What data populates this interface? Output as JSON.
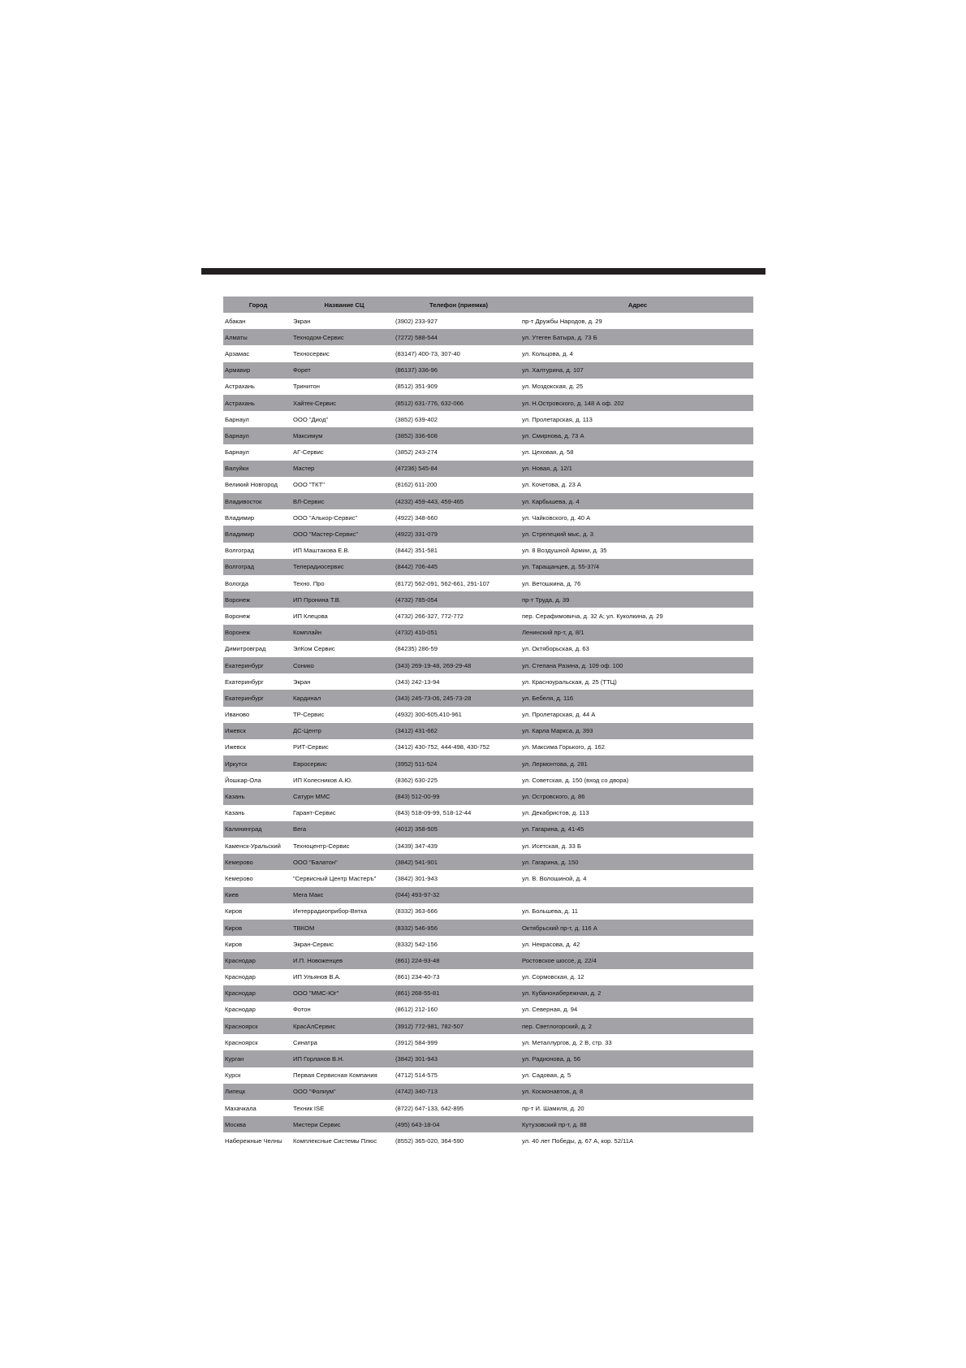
{
  "table": {
    "headers": [
      "Город",
      "Название СЦ",
      "Телефон (приемка)",
      "Адрес"
    ],
    "rows": [
      [
        "Абакан",
        "Экран",
        "(3902) 233-927",
        "пр-т Дружбы Народов, д. 29"
      ],
      [
        "Алматы",
        "Технодом-Сервис",
        "(7272) 588-544",
        "ул. Утеген Батыра, д. 73 Б"
      ],
      [
        "Арзамас",
        "Техносервис",
        "(83147) 400-73, 307-40",
        "ул. Кольцова, д. 4"
      ],
      [
        "Армавир",
        "Форет",
        "(86137) 336-96",
        "ул. Халтурина, д. 107"
      ],
      [
        "Астрахань",
        "Тринитон",
        "(8512) 351-909",
        "ул. Моздокская, д. 25"
      ],
      [
        "Астрахань",
        "Хайтек-Сервис",
        "(8512) 631-776, 632-066",
        "ул. Н.Островского, д. 148 А оф. 202"
      ],
      [
        "Барнаул",
        "ООО \"Диод\"",
        "(3852) 639-402",
        "ул. Пролетарская, д. 113"
      ],
      [
        "Барнаул",
        "Максимум",
        "(3852) 336-608",
        "ул. Смирнова, д. 73 А"
      ],
      [
        "Барнаул",
        "АГ-Сервис",
        "(3852) 243-274",
        "ул. Цеховая, д. 58"
      ],
      [
        "Валуйки",
        "Мастер",
        "(47236) 545-84",
        "ул. Новая, д. 12/1"
      ],
      [
        "Великий Новгород",
        "ООО \"ТКТ\"",
        "(8162) 611-200",
        "ул. Кочетова, д. 23 А"
      ],
      [
        "Владивосток",
        "ВЛ-Сервис",
        "(4232) 459-443, 459-465",
        "ул. Карбышева, д. 4"
      ],
      [
        "Владимир",
        "ООО \"Алькор-Сервис\"",
        "(4922) 348-660",
        "ул. Чайковского, д. 40 А"
      ],
      [
        "Владимир",
        "ООО \"Мастер-Сервис\"",
        "(4922) 331-079",
        "ул. Стрелецкий мыс, д. 3"
      ],
      [
        "Волгоград",
        "ИП Маштакова Е.В.",
        "(8442) 351-581",
        "ул. 8 Воздушной Армии, д. 35"
      ],
      [
        "Волгоград",
        "Телерадиосервис",
        "(8442) 706-445",
        "ул. Таращанцев, д. 55-37/4"
      ],
      [
        "Вологда",
        "Техно. Про",
        "(8172) 562-091, 562-661, 291-107",
        "ул. Ветошкина, д. 76"
      ],
      [
        "Воронеж",
        "ИП Пронина Т.В.",
        "(4732) 785-054",
        "пр-т Труда, д. 39"
      ],
      [
        "Воронеж",
        "ИП Клецова",
        "(4732) 266-327, 772-772",
        "пер. Серафимовича, д. 32 А; ул. Куколкина, д. 29"
      ],
      [
        "Воронеж",
        "Комплайн",
        "(4732) 410-051",
        "Ленинский пр-т, д. 8/1"
      ],
      [
        "Димитровград",
        "ЭлКом Сервис",
        "(84235) 286-59",
        "ул. Октяборьская,  д. 63"
      ],
      [
        "Екатеринбург",
        "Сонико",
        "(343) 269-19-48, 269-29-48",
        "ул. Степана Разина, д. 109 оф. 100"
      ],
      [
        "Екатеринбург",
        "Экран",
        "(343) 242-13-94",
        "ул. Красноуральская, д. 25  (ТТЦ)"
      ],
      [
        "Екатеринбург",
        "Кардинал",
        "(343) 245-73-06, 245-73-28",
        "ул. Бебеля, д. 116"
      ],
      [
        "Иваново",
        "ТР-Сервис",
        "(4932) 300-605,410-961",
        "ул. Пролетарская, д. 44 А"
      ],
      [
        "Ижевск",
        "ДС-Центр",
        "(3412) 431-662",
        "ул. Карла Маркса, д. 393"
      ],
      [
        "Ижевск",
        "РИТ-Сервис",
        "(3412) 430-752, 444-498, 430-752",
        "ул. Максима Горького, д. 162"
      ],
      [
        "Иркутск",
        "Евросервис",
        "(3952) 511-524",
        "ул. Лермонтова, д. 281"
      ],
      [
        "Йошкар-Ола",
        "ИП Колесников А.Ю.",
        "(8362) 630-225",
        "ул. Советская, д. 150 (вход со двора)"
      ],
      [
        "Казань",
        "Сатурн ММС",
        "(843) 512-00-99",
        "ул. Островского, д. 86"
      ],
      [
        "Казань",
        "Гарант-Сервис",
        "(843) 518-09-99,  518-12-44",
        "ул. Декабристов, д. 113"
      ],
      [
        "Калининград",
        "Вега",
        "(4012) 358-505",
        "ул. Гагарина, д. 41-45"
      ],
      [
        "Каменск-Уральский",
        "Техноцентр-Сервис",
        "(3439) 347-439",
        "ул. Исетская, д. 33 Б"
      ],
      [
        "Кемерово",
        "ООО \"Балатон\"",
        "(3842) 541-901",
        "ул. Гагарина, д. 150"
      ],
      [
        "Кемерово",
        "\"Сервисный Центр Мастеръ\"",
        "(3842) 301-943",
        "ул. В. Волошиной, д. 4"
      ],
      [
        "Киев",
        "Мега Макс",
        "(044) 493-97-32",
        ""
      ],
      [
        "Киров",
        "Интеррадиоприбор-Вятка",
        "(8332) 363-666",
        "ул. Большева, д. 11"
      ],
      [
        "Киров",
        "ТВКОМ",
        "(8332) 546-956",
        "Октябрьский пр-т, д. 116 А"
      ],
      [
        "Киров",
        "Экран-Сервис",
        "(8332) 542-156",
        "ул. Некрасова, д. 42"
      ],
      [
        "Краснодар",
        "И.П. Новоженцев",
        "(861) 224-93-48",
        "Ростовское шоссе, д. 22/4"
      ],
      [
        "Краснодар",
        "ИП Ульянов В.А.",
        "(861) 234-40-73",
        "ул. Сормовская, д. 12"
      ],
      [
        "Краснодар",
        "ООО \"ММС-Юг\"",
        "(861) 268-55-81",
        "ул. Кубанонабережная, д. 2"
      ],
      [
        "Краснодар",
        "Фотон",
        "(8612) 212-160",
        "ул. Северная, д. 94"
      ],
      [
        "Красноярск",
        "КрасАлСервис",
        "(3912) 772-981, 782-507",
        "пер. Светлогорский, д. 2"
      ],
      [
        "Красноярск",
        "Синатра",
        "(3912) 584-999",
        "ул. Металлургов, д. 2 В, стр. 33"
      ],
      [
        "Курган",
        "ИП Горланов В.Н.",
        "(3842) 301-943",
        "ул. Радионова, д. 56"
      ],
      [
        "Курск",
        "Первая Сервисная Компания",
        "(4712) 514-575",
        "ул. Садовая, д. 5"
      ],
      [
        "Липецк",
        "ООО \"Фолиум\"",
        "(4742) 340-713",
        "ул. Космонавтов, д. 8"
      ],
      [
        "Махачкала",
        "Техник ISE",
        "(8722)  647-133, 642-895",
        "пр-т И. Шамиля, д. 20"
      ],
      [
        "Москва",
        "Мистери Сервис",
        "(495) 643-18-04",
        "Кутузовский пр-т, д. 88"
      ],
      [
        "Набережные Челны",
        "Комплексные Системы Плюс",
        "(8552) 365-020, 364-590",
        "ул. 40 лет Победы, д. 67 А, кор. 52/11А"
      ]
    ]
  },
  "colors": {
    "stripe": "#a3a2a6",
    "top_bar": "#231f20"
  }
}
